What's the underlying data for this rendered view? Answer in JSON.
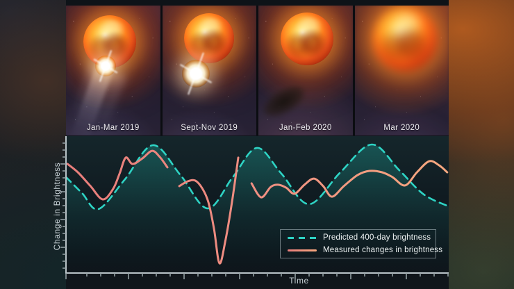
{
  "panels": [
    {
      "label": "Jan-Mar 2019"
    },
    {
      "label": "Sept-Nov 2019"
    },
    {
      "label": "Jan-Feb 2020"
    },
    {
      "label": "Mar 2020"
    }
  ],
  "chart_data": {
    "type": "line",
    "title": "",
    "xlabel": "Time",
    "ylabel": "Change in Brightness",
    "axis_numeric_labels": false,
    "grid": false,
    "legend_position": "lower-right-inside",
    "x_range_units": "relative time 0-100 (axis shows tick marks only)",
    "y_range_units": "relative brightness 0-100 (axis shows tick marks only)",
    "series": [
      {
        "name": "Predicted 400-day brightness",
        "style": "dashed",
        "color": "#2ed3c4",
        "fill_color": "#1fb3a6",
        "points": [
          [
            0,
            70.1
          ],
          [
            4.2,
            58.4
          ],
          [
            8.5,
            46.7
          ],
          [
            15.4,
            68.5
          ],
          [
            22.7,
            93.4
          ],
          [
            29.9,
            71.6
          ],
          [
            37,
            47.2
          ],
          [
            43.6,
            70.1
          ],
          [
            49.9,
            91.4
          ],
          [
            56.3,
            72.6
          ],
          [
            63.5,
            50.3
          ],
          [
            71.7,
            73.6
          ],
          [
            79.9,
            93.9
          ],
          [
            87.1,
            75.1
          ],
          [
            93.5,
            57.4
          ],
          [
            100,
            48.7
          ]
        ]
      },
      {
        "name": "Measured changes in brightness",
        "style": "solid",
        "color_left": "#e87d7b",
        "color_mid": "#ef8f82",
        "color_right": "#f6a87f",
        "segments": [
          [
            [
              0.4,
              79.7
            ],
            [
              3.1,
              73.6
            ],
            [
              6.4,
              63.5
            ],
            [
              9.6,
              53.8
            ],
            [
              12.3,
              61.4
            ],
            [
              14,
              72.6
            ],
            [
              15.6,
              84.3
            ],
            [
              17.4,
              79.7
            ],
            [
              20,
              83.8
            ],
            [
              22.5,
              89.3
            ],
            [
              24.5,
              84.8
            ],
            [
              26.5,
              77.2
            ]
          ],
          [
            [
              29.6,
              63.5
            ],
            [
              31.8,
              67
            ],
            [
              33.8,
              67.5
            ],
            [
              35.6,
              61.9
            ],
            [
              37.2,
              51.8
            ],
            [
              38.7,
              32
            ],
            [
              40.1,
              7.1
            ],
            [
              41.7,
              24.4
            ],
            [
              43.4,
              52.3
            ],
            [
              45,
              84.3
            ]
          ],
          [
            [
              48.5,
              65.5
            ],
            [
              51,
              55.3
            ],
            [
              53.5,
              62.9
            ],
            [
              55.4,
              64.5
            ],
            [
              57.5,
              62.4
            ],
            [
              59.7,
              57.9
            ],
            [
              62.3,
              64.5
            ],
            [
              64.8,
              69
            ],
            [
              67.2,
              63.5
            ],
            [
              69.5,
              55.8
            ],
            [
              72.6,
              63.5
            ],
            [
              76.2,
              71.6
            ],
            [
              79.3,
              74.6
            ],
            [
              82.6,
              73.6
            ],
            [
              85.3,
              70.1
            ],
            [
              88.6,
              64
            ],
            [
              91.7,
              73.6
            ],
            [
              94.9,
              81.7
            ],
            [
              97.5,
              78.7
            ],
            [
              99.6,
              73.6
            ]
          ]
        ]
      }
    ]
  },
  "colors": {
    "predicted_line": "#2ed3c4",
    "measured_line": "#ef8f82",
    "axis": "#b9c3c7",
    "tick": "#9aa6ab",
    "chart_background": "#10191f"
  }
}
